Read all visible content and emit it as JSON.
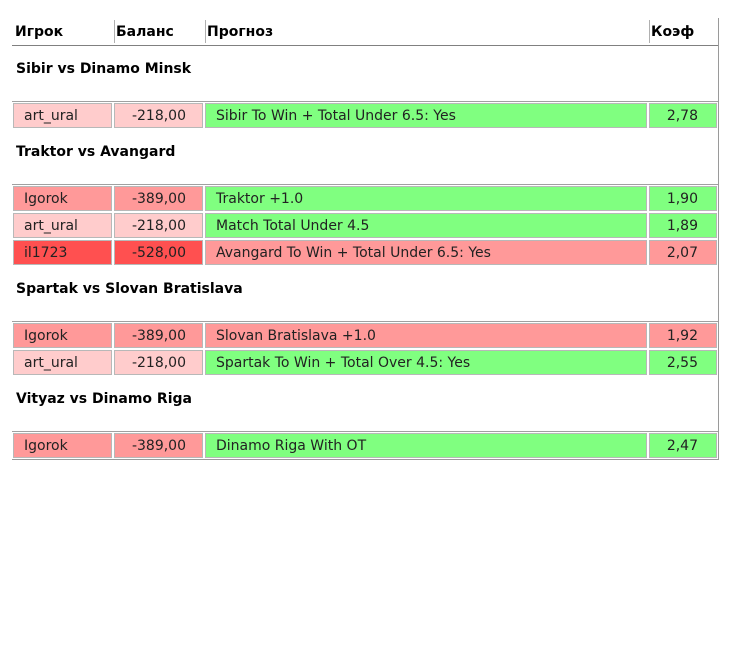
{
  "headers": {
    "player": "Игрок",
    "balance": "Баланс",
    "prediction": "Прогноз",
    "coef": "Коэф"
  },
  "matches": [
    {
      "title": "Sibir vs Dinamo Minsk",
      "rows": [
        {
          "player": "art_ural",
          "balance": "-218,00",
          "prediction": "Sibir To Win + Total Under 6.5: Yes",
          "coef": "2,78",
          "player_color": "#ffcccc",
          "pred_color": "#80ff80"
        }
      ]
    },
    {
      "title": "Traktor vs Avangard",
      "rows": [
        {
          "player": "Igorok",
          "balance": "-389,00",
          "prediction": "Traktor +1.0",
          "coef": "1,90",
          "player_color": "#ff9999",
          "pred_color": "#80ff80"
        },
        {
          "player": "art_ural",
          "balance": "-218,00",
          "prediction": "Match Total Under 4.5",
          "coef": "1,89",
          "player_color": "#ffcccc",
          "pred_color": "#80ff80"
        },
        {
          "player": "il1723",
          "balance": "-528,00",
          "prediction": "Avangard To Win + Total Under 6.5: Yes",
          "coef": "2,07",
          "player_color": "#ff5050",
          "pred_color": "#ff9999"
        }
      ]
    },
    {
      "title": "Spartak vs Slovan Bratislava",
      "rows": [
        {
          "player": "Igorok",
          "balance": "-389,00",
          "prediction": "Slovan Bratislava +1.0",
          "coef": "1,92",
          "player_color": "#ff9999",
          "pred_color": "#ff9999"
        },
        {
          "player": "art_ural",
          "balance": "-218,00",
          "prediction": "Spartak To Win + Total Over 4.5: Yes",
          "coef": "2,55",
          "player_color": "#ffcccc",
          "pred_color": "#80ff80"
        }
      ]
    },
    {
      "title": "Vityaz vs Dinamo Riga",
      "rows": [
        {
          "player": "Igorok",
          "balance": "-389,00",
          "prediction": "Dinamo Riga With OT",
          "coef": "2,47",
          "player_color": "#ff9999",
          "pred_color": "#80ff80"
        }
      ]
    }
  ]
}
